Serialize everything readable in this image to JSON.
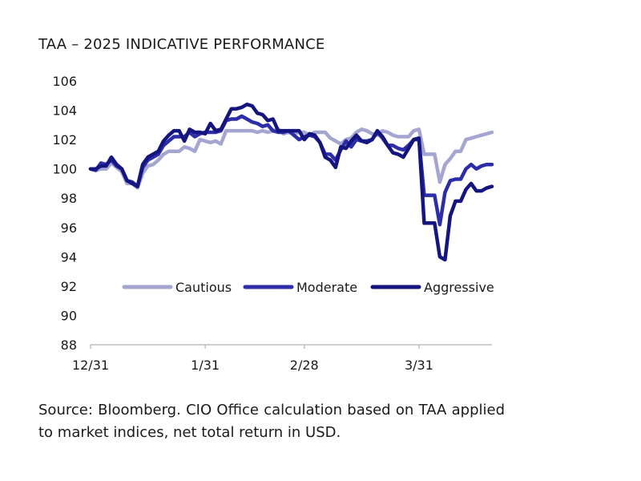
{
  "chart_data": {
    "type": "line",
    "title": "TAA – 2025 INDICATIVE PERFORMANCE",
    "xlabel": "",
    "ylabel": "",
    "x_tick_labels": [
      "12/31",
      "1/31",
      "2/28",
      "3/31"
    ],
    "x_tick_index": [
      0,
      22,
      41,
      63
    ],
    "x_count": 78,
    "ylim": [
      88,
      106
    ],
    "y_ticks": [
      88,
      90,
      92,
      94,
      96,
      98,
      100,
      102,
      104,
      106
    ],
    "legend_position": "center",
    "series": [
      {
        "name": "Cautious",
        "color": "#a5a5d2",
        "values": [
          100.0,
          99.9,
          100.0,
          100.0,
          100.4,
          100.1,
          99.8,
          99.0,
          99.0,
          98.7,
          99.7,
          100.2,
          100.3,
          100.6,
          101.0,
          101.2,
          101.2,
          101.2,
          101.5,
          101.4,
          101.2,
          102.0,
          101.9,
          101.8,
          101.9,
          101.7,
          102.6,
          102.6,
          102.6,
          102.6,
          102.6,
          102.6,
          102.5,
          102.6,
          102.5,
          102.6,
          102.7,
          102.4,
          102.5,
          102.4,
          102.5,
          102.5,
          102.3,
          102.5,
          102.5,
          102.5,
          102.1,
          101.9,
          101.7,
          102.0,
          102.1,
          102.5,
          102.7,
          102.6,
          102.4,
          102.3,
          102.6,
          102.5,
          102.3,
          102.2,
          102.2,
          102.2,
          102.6,
          102.7,
          101.0,
          101.0,
          101.0,
          99.1,
          100.3,
          100.7,
          101.2,
          101.2,
          102.0,
          102.1,
          102.2,
          102.3,
          102.4,
          102.5
        ]
      },
      {
        "name": "Moderate",
        "color": "#2d2daa",
        "values": [
          100.0,
          99.9,
          100.4,
          100.3,
          100.6,
          100.2,
          100.0,
          99.2,
          99.1,
          98.8,
          100.1,
          100.6,
          100.8,
          101.0,
          101.6,
          101.9,
          102.2,
          102.2,
          102.2,
          102.5,
          102.2,
          102.4,
          102.5,
          102.5,
          102.5,
          102.6,
          103.3,
          103.4,
          103.4,
          103.6,
          103.4,
          103.2,
          103.1,
          102.9,
          103.0,
          102.6,
          102.5,
          102.5,
          102.6,
          102.3,
          102.0,
          102.2,
          102.3,
          102.2,
          101.8,
          101.0,
          101.0,
          100.6,
          101.3,
          101.9,
          101.5,
          102.0,
          101.9,
          101.9,
          102.0,
          102.5,
          102.1,
          101.6,
          101.6,
          101.4,
          101.3,
          101.6,
          102.0,
          102.0,
          98.2,
          98.2,
          98.2,
          96.2,
          98.4,
          99.2,
          99.3,
          99.3,
          100.0,
          100.3,
          100.0,
          100.2,
          100.3,
          100.3
        ]
      },
      {
        "name": "Aggressive",
        "color": "#151580",
        "values": [
          100.0,
          100.0,
          100.2,
          100.2,
          100.8,
          100.3,
          100.0,
          99.2,
          99.0,
          98.8,
          100.3,
          100.8,
          101.0,
          101.2,
          101.9,
          102.3,
          102.6,
          102.6,
          101.9,
          102.7,
          102.5,
          102.5,
          102.4,
          103.1,
          102.6,
          102.7,
          103.4,
          104.1,
          104.1,
          104.2,
          104.4,
          104.3,
          103.8,
          103.7,
          103.3,
          103.4,
          102.6,
          102.6,
          102.6,
          102.6,
          102.6,
          102.0,
          102.4,
          102.3,
          101.8,
          100.8,
          100.6,
          100.1,
          101.5,
          101.4,
          101.9,
          102.3,
          101.9,
          101.8,
          102.0,
          102.6,
          102.2,
          101.6,
          101.1,
          101.0,
          100.8,
          101.4,
          102.0,
          102.1,
          96.3,
          96.3,
          96.3,
          94.0,
          93.8,
          96.8,
          97.8,
          97.8,
          98.6,
          99.0,
          98.5,
          98.5,
          98.7,
          98.8
        ]
      }
    ]
  },
  "source_text": "Source: Bloomberg. CIO Office calculation based on TAA applied to market indices, net total return in USD."
}
